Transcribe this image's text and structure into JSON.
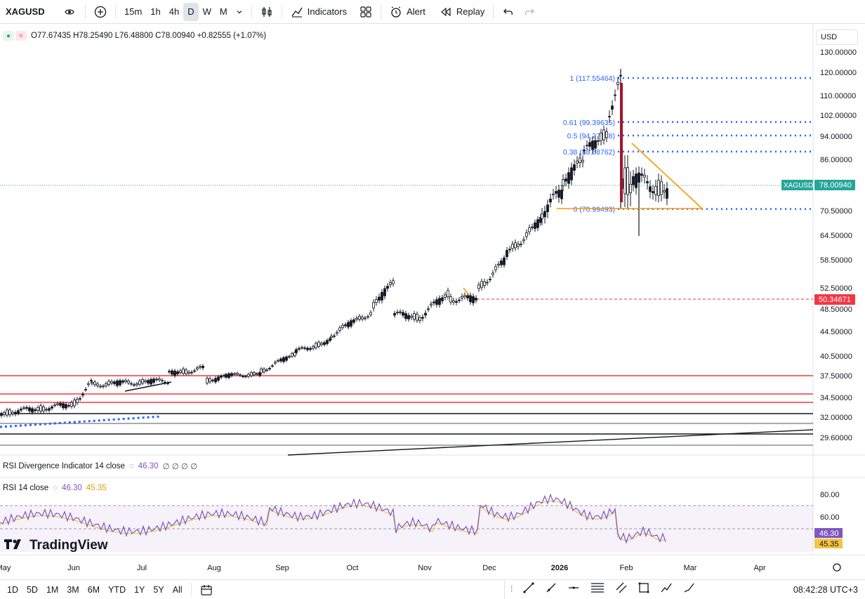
{
  "toolbar": {
    "symbol": "XAGUSD",
    "intervals": [
      "15m",
      "1h",
      "4h",
      "D",
      "W",
      "M"
    ],
    "active_interval": "D",
    "indicators_label": "Indicators",
    "alert_label": "Alert",
    "replay_label": "Replay"
  },
  "legend": {
    "ohlc": "O77.67435 H78.25490 L76.48800 C78.00940 +0.82555 (+1.07%)"
  },
  "currency": "USD",
  "price_axis": {
    "ticks": [
      "130.00000",
      "120.00000",
      "110.00000",
      "102.00000",
      "94.00000",
      "86.00000",
      "70.50000",
      "64.50000",
      "58.50000",
      "52.50000",
      "48.50000",
      "44.50000",
      "40.50000",
      "37.50000",
      "34.50000",
      "32.00000",
      "29.60000"
    ],
    "symbol_label": "XAGUSD",
    "last_price": "78.00940",
    "alert_price": "50.34671"
  },
  "fib": {
    "levels": [
      "1 (117.55464)",
      "0.61 (99.39635)",
      "0.5 (94.27478)",
      "0.38 (88.68762)",
      "0 (70.99493)"
    ]
  },
  "rsi_div": {
    "label": "RSI Divergence Indicator 14 close",
    "value": "46.30",
    "zeros": "∅ ∅ ∅ ∅"
  },
  "rsi": {
    "label": "RSI 14 close",
    "value": "46.30",
    "ma_value": "45.35",
    "ticks": [
      "80.00",
      "60.00"
    ]
  },
  "time_axis": {
    "labels": [
      "May",
      "Jun",
      "Jul",
      "Aug",
      "Sep",
      "Oct",
      "Nov",
      "Dec",
      "2026",
      "Feb",
      "Mar",
      "Apr"
    ]
  },
  "logo": "TradingView",
  "bottom": {
    "ranges": [
      "1D",
      "5D",
      "1M",
      "3M",
      "6M",
      "YTD",
      "1Y",
      "5Y",
      "All"
    ],
    "clock": "08:42:28 UTC+3"
  },
  "colors": {
    "up": "#26a69a",
    "down": "#ef5350",
    "candle": "#131722",
    "fib_blue": "#2962ff",
    "triangle": "#ff9800",
    "alert": "#f23645",
    "rsi": "#7e57c2",
    "rsi_ma": "#f5c542"
  }
}
